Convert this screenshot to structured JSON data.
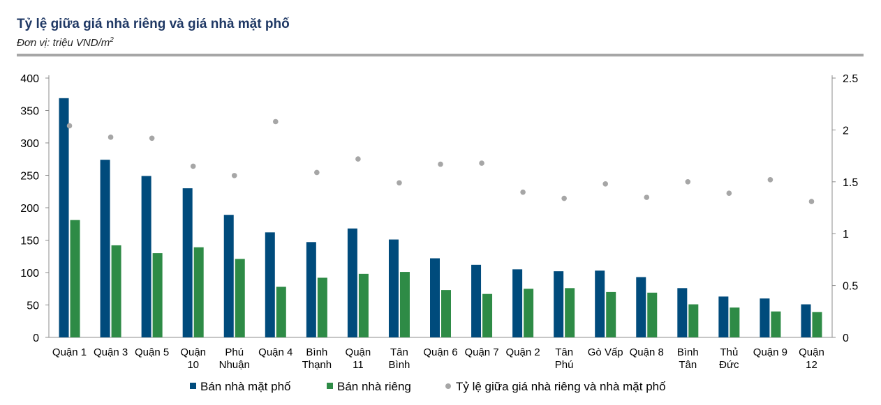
{
  "header": {
    "title": "Tỷ lệ giữa giá nhà riêng và giá nhà mặt phố",
    "subtitle_main": "Đơn vị: triệu VND/m",
    "subtitle_sup": "2"
  },
  "colors": {
    "street": "#004b7c",
    "private": "#2e8b46",
    "ratio": "#a6a6a6",
    "title": "#1f3864"
  },
  "chart_data": {
    "type": "bar",
    "categories": [
      [
        "Quận 1"
      ],
      [
        "Quận 3"
      ],
      [
        "Quận 5"
      ],
      [
        "Quận",
        "10"
      ],
      [
        "Phú",
        "Nhuận"
      ],
      [
        "Quận 4"
      ],
      [
        "Bình",
        "Thạnh"
      ],
      [
        "Quận",
        "11"
      ],
      [
        "Tân",
        "Bình"
      ],
      [
        "Quận 6"
      ],
      [
        "Quận 7"
      ],
      [
        "Quận 2"
      ],
      [
        "Tân",
        "Phú"
      ],
      [
        "Gò Vấp"
      ],
      [
        "Quận 8"
      ],
      [
        "Bình",
        "Tân"
      ],
      [
        "Thủ",
        "Đức"
      ],
      [
        "Quận 9"
      ],
      [
        "Quận",
        "12"
      ]
    ],
    "series": [
      {
        "name": "Bán nhà mặt phố",
        "axis": "left",
        "kind": "bar",
        "values": [
          369,
          274,
          249,
          230,
          189,
          162,
          147,
          168,
          151,
          122,
          112,
          105,
          102,
          103,
          93,
          76,
          63,
          60,
          51
        ]
      },
      {
        "name": "Bán nhà riêng",
        "axis": "left",
        "kind": "bar",
        "values": [
          181,
          142,
          130,
          139,
          121,
          78,
          92,
          98,
          101,
          73,
          67,
          75,
          76,
          70,
          69,
          51,
          46,
          40,
          39
        ]
      },
      {
        "name": "Tỷ lệ giữa giá nhà riêng và nhà mặt phố",
        "axis": "right",
        "kind": "scatter",
        "values": [
          2.04,
          1.93,
          1.92,
          1.65,
          1.56,
          2.08,
          1.59,
          1.72,
          1.49,
          1.67,
          1.68,
          1.4,
          1.34,
          1.48,
          1.35,
          1.5,
          1.39,
          1.52,
          1.31
        ]
      }
    ],
    "y_left": {
      "ticks": [
        "0",
        "50",
        "100",
        "150",
        "200",
        "250",
        "300",
        "350",
        "400"
      ],
      "min": 0,
      "max": 400
    },
    "y_right": {
      "ticks": [
        "0",
        "0.5",
        "1",
        "1.5",
        "2",
        "2.5"
      ],
      "min": 0,
      "max": 2.5
    },
    "grid": false,
    "legend_position": "bottom"
  }
}
